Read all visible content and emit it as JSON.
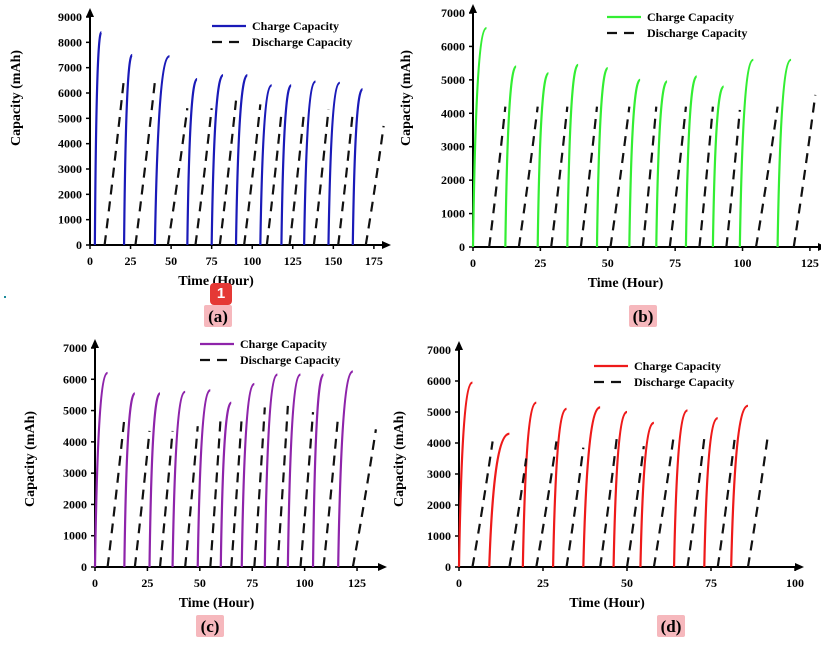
{
  "page_marker": "1",
  "chart_data": [
    {
      "type": "line",
      "panel_label": "(a)",
      "xlabel": "Time (Hour)",
      "ylabel": "Capacity (mAh)",
      "xlim": [
        0,
        180
      ],
      "ylim": [
        0,
        9000
      ],
      "xticks": [
        0,
        25,
        50,
        75,
        100,
        125,
        150,
        175
      ],
      "yticks": [
        0,
        1000,
        2000,
        3000,
        4000,
        5000,
        6000,
        7000,
        8000,
        9000
      ],
      "legend": "top-right",
      "colors": {
        "charge": "#1a1ab8",
        "discharge": "#111111"
      },
      "series": [
        {
          "name": "Charge Capacity",
          "style": "solid",
          "x_start": [
            3,
            21,
            40,
            60,
            75,
            90,
            105,
            118,
            132,
            147,
            162
          ],
          "x_end": [
            7,
            26,
            49,
            66,
            82,
            97,
            112,
            124,
            139,
            154,
            168
          ],
          "values": [
            8400,
            7500,
            7450,
            6550,
            6700,
            6700,
            6300,
            6300,
            6450,
            6400,
            6150
          ]
        },
        {
          "name": "Discharge Capacity",
          "style": "dashed",
          "x_start": [
            9,
            28,
            48,
            65,
            80,
            95,
            109,
            123,
            138,
            153,
            170
          ],
          "x_end": [
            21,
            40,
            60,
            75,
            90,
            105,
            118,
            132,
            147,
            162,
            181
          ],
          "values": [
            6600,
            6450,
            5400,
            5400,
            5700,
            5550,
            5200,
            5300,
            5350,
            5250,
            4700
          ]
        }
      ]
    },
    {
      "type": "line",
      "panel_label": "(b)",
      "xlabel": "Time (Hour)",
      "ylabel": "Capacity (mAh)",
      "xlim": [
        0,
        128
      ],
      "ylim": [
        0,
        7000
      ],
      "xticks": [
        0,
        25,
        50,
        75,
        100,
        125
      ],
      "yticks": [
        0,
        1000,
        2000,
        3000,
        4000,
        5000,
        6000,
        7000
      ],
      "legend": "top-right",
      "colors": {
        "charge": "#33ee33",
        "discharge": "#111111"
      },
      "series": [
        {
          "name": "Charge Capacity",
          "style": "solid",
          "x_start": [
            0,
            12,
            24,
            35,
            46,
            58,
            68,
            79,
            89,
            99,
            113
          ],
          "x_end": [
            5,
            16,
            28,
            39,
            50,
            62,
            72,
            83,
            93,
            104,
            118
          ],
          "values": [
            6550,
            5400,
            5200,
            5450,
            5350,
            5000,
            4950,
            5100,
            4800,
            5600,
            5600
          ]
        },
        {
          "name": "Discharge Capacity",
          "style": "dashed",
          "x_start": [
            6,
            17,
            29,
            40,
            51,
            63,
            73,
            84,
            94,
            105,
            119
          ],
          "x_end": [
            12,
            24,
            35,
            46,
            58,
            68,
            79,
            89,
            99,
            113,
            127
          ],
          "values": [
            4200,
            4200,
            4200,
            4200,
            4200,
            4200,
            4200,
            4200,
            4100,
            4200,
            4550
          ]
        }
      ]
    },
    {
      "type": "line",
      "panel_label": "(c)",
      "xlabel": "Time (Hour)",
      "ylabel": "Capacity (mAh)",
      "xlim": [
        0,
        135
      ],
      "ylim": [
        0,
        7000
      ],
      "xticks": [
        0,
        25,
        50,
        75,
        100,
        125
      ],
      "yticks": [
        0,
        1000,
        2000,
        3000,
        4000,
        5000,
        6000,
        7000
      ],
      "legend": "top-right",
      "colors": {
        "charge": "#8e24aa",
        "discharge": "#111111"
      },
      "series": [
        {
          "name": "Charge Capacity",
          "style": "solid",
          "x_start": [
            0,
            14,
            26,
            37,
            49,
            60,
            70,
            81,
            92,
            104,
            116
          ],
          "x_end": [
            6,
            19,
            31,
            43,
            55,
            65,
            76,
            87,
            98,
            109,
            123
          ],
          "values": [
            6200,
            5550,
            5550,
            5600,
            5650,
            5250,
            5850,
            6150,
            6150,
            6150,
            6250
          ]
        },
        {
          "name": "Discharge Capacity",
          "style": "dashed",
          "x_start": [
            6,
            19,
            31,
            43,
            55,
            65,
            76,
            87,
            98,
            109,
            123
          ],
          "x_end": [
            14,
            26,
            37,
            49,
            60,
            70,
            81,
            92,
            104,
            116,
            134
          ],
          "values": [
            4750,
            4350,
            4350,
            4500,
            4850,
            4800,
            5100,
            5150,
            4950,
            4850,
            4400
          ]
        }
      ]
    },
    {
      "type": "line",
      "panel_label": "(d)",
      "xlabel": "Time (Hour)",
      "ylabel": "Capacity (mAh)",
      "xlim": [
        0,
        100
      ],
      "ylim": [
        0,
        7000
      ],
      "xticks": [
        0,
        25,
        50,
        75,
        100
      ],
      "yticks": [
        0,
        1000,
        2000,
        3000,
        4000,
        5000,
        6000,
        7000
      ],
      "legend": "top-right",
      "colors": {
        "charge": "#ee1a1a",
        "discharge": "#111111"
      },
      "series": [
        {
          "name": "Charge Capacity",
          "style": "solid",
          "x_start": [
            0,
            9,
            19,
            28,
            37,
            46,
            54,
            64,
            73,
            81
          ],
          "x_end": [
            4,
            15,
            23,
            32,
            42,
            50,
            58,
            68,
            77,
            86
          ],
          "values": [
            5950,
            4300,
            5300,
            5100,
            5150,
            5000,
            4650,
            5050,
            4800,
            5200
          ]
        },
        {
          "name": "Discharge Capacity",
          "style": "dashed",
          "x_start": [
            4,
            15,
            23,
            32,
            42,
            50,
            58,
            68,
            77,
            86
          ],
          "x_end": [
            10,
            20,
            29,
            37,
            47,
            55,
            64,
            73,
            82,
            92
          ],
          "values": [
            4050,
            3500,
            4050,
            3850,
            4200,
            3900,
            4300,
            4150,
            4100,
            4300
          ]
        }
      ]
    }
  ]
}
